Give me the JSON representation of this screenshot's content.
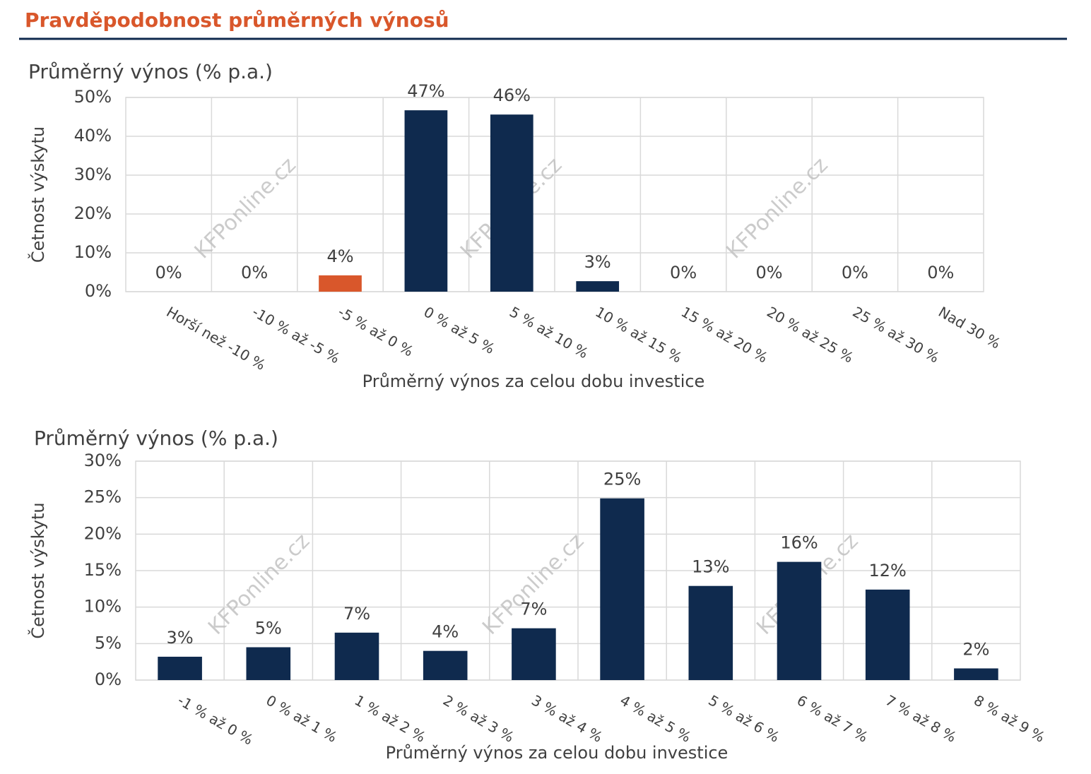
{
  "title": "Pravděpodobnost průměrných výnosů",
  "watermark": "KFPonline.cz",
  "chart_data": [
    {
      "type": "bar",
      "title": "Průměrný výnos (% p.a.)",
      "xlabel": "Průměrný výnos za celou dobu investice",
      "ylabel": "Četnost výskytu",
      "categories": [
        "Horší než -10 %",
        "-10 % až -5 %",
        "-5 % až 0 %",
        "0 % až 5 %",
        "5 % až 10 %",
        "10 % až 15 %",
        "15 % až 20 %",
        "20 % až 25 %",
        "25 % až 30 %",
        "Nad 30 %"
      ],
      "values": [
        0,
        0,
        4.2,
        46.7,
        45.6,
        2.7,
        0,
        0,
        0,
        0
      ],
      "value_labels": [
        "0%",
        "0%",
        "4%",
        "47%",
        "46%",
        "3%",
        "0%",
        "0%",
        "0%",
        "0%"
      ],
      "colors": [
        "#0f2a4e",
        "#0f2a4e",
        "#d9572b",
        "#0f2a4e",
        "#0f2a4e",
        "#0f2a4e",
        "#0f2a4e",
        "#0f2a4e",
        "#0f2a4e",
        "#0f2a4e"
      ],
      "ylim": [
        0,
        50
      ],
      "yticks": [
        {
          "value": 0,
          "label": "0%"
        },
        {
          "value": 10,
          "label": "10%"
        },
        {
          "value": 20,
          "label": "20%"
        },
        {
          "value": 30,
          "label": "30%"
        },
        {
          "value": 40,
          "label": "40%"
        },
        {
          "value": 50,
          "label": "50%"
        }
      ],
      "grid": true
    },
    {
      "type": "bar",
      "title": "Průměrný výnos (% p.a.)",
      "xlabel": "Průměrný výnos za celou dobu investice",
      "ylabel": "Četnost výskytu",
      "categories": [
        "-1 % až 0 %",
        "0 % až 1 %",
        "1 % až 2 %",
        "2 % až 3 %",
        "3 % až 4 %",
        "4 % až 5 %",
        "5 % až 6 %",
        "6 % až 7 %",
        "7 % až 8 %",
        "8 % až 9 %"
      ],
      "values": [
        3.2,
        4.5,
        6.5,
        4.0,
        7.1,
        24.9,
        12.9,
        16.2,
        12.4,
        1.6
      ],
      "value_labels": [
        "3%",
        "5%",
        "7%",
        "4%",
        "7%",
        "25%",
        "13%",
        "16%",
        "12%",
        "2%"
      ],
      "colors": [
        "#0f2a4e",
        "#0f2a4e",
        "#0f2a4e",
        "#0f2a4e",
        "#0f2a4e",
        "#0f2a4e",
        "#0f2a4e",
        "#0f2a4e",
        "#0f2a4e",
        "#0f2a4e"
      ],
      "ylim": [
        0,
        30
      ],
      "yticks": [
        {
          "value": 0,
          "label": "0%"
        },
        {
          "value": 5,
          "label": "5%"
        },
        {
          "value": 10,
          "label": "10%"
        },
        {
          "value": 15,
          "label": "15%"
        },
        {
          "value": 20,
          "label": "20%"
        },
        {
          "value": 25,
          "label": "25%"
        },
        {
          "value": 30,
          "label": "30%"
        }
      ],
      "grid": true
    }
  ]
}
